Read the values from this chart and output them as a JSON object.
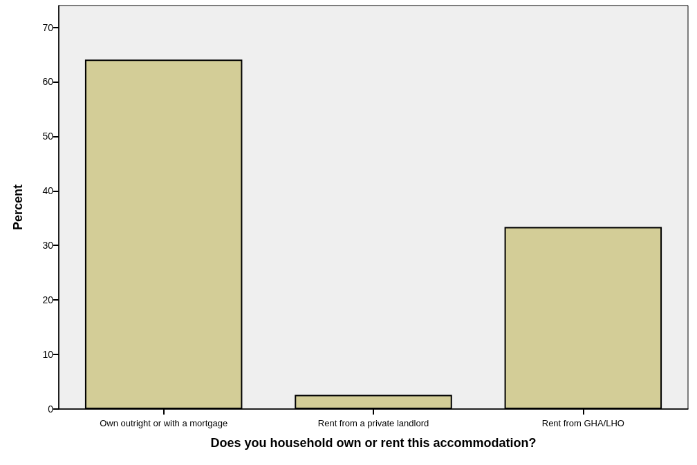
{
  "chart_data": {
    "type": "bar",
    "xlabel": "Does you household own or rent this accommodation?",
    "ylabel": "Percent",
    "categories": [
      "Own outright or with a mortgage",
      "Rent from a private landlord",
      "Rent from GHA/LHO"
    ],
    "values": [
      64.1,
      2.6,
      33.4
    ],
    "color": "#d3cd97",
    "ylim": [
      0,
      74
    ],
    "yticks": [
      0,
      10,
      20,
      30,
      40,
      50,
      60,
      70
    ],
    "grid": false
  }
}
